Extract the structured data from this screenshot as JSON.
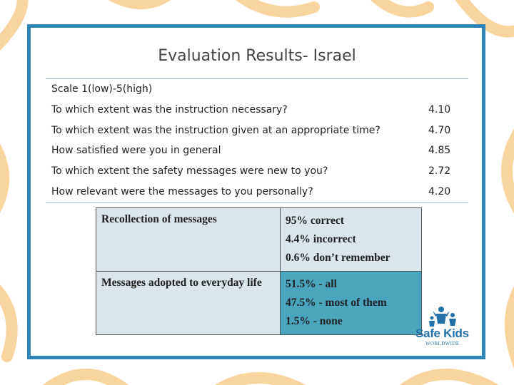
{
  "title": "Evaluation Results- Israel",
  "scale": "Scale 1(low)-5(high)",
  "questions": [
    {
      "q": "To which extent was the instruction necessary?",
      "v": "4.10"
    },
    {
      "q": "To which extent was the instruction given at an appropriate time?",
      "v": "4.70"
    },
    {
      "q": "How satisfied were you in general",
      "v": "4.85"
    },
    {
      "q": "To which extent the safety messages were new to you?",
      "v": "2.72"
    },
    {
      "q": "How relevant were the messages to you personally?",
      "v": "4.20"
    }
  ],
  "results": [
    {
      "label": "Recollection of messages",
      "lines": [
        "95% correct",
        "4.4% incorrect",
        "0.6% don’t remember"
      ]
    },
    {
      "label": "Messages adopted to everyday life",
      "lines": [
        "51.5% - all",
        "47.5% - most of them",
        "1.5% - none"
      ]
    }
  ],
  "logo": {
    "name": "Safe Kids",
    "sub": "WORLDWIDE",
    "color": "#2371a8"
  },
  "colors": {
    "frame": "#2e84b4",
    "row1": "#dbe5ec",
    "row2": "#4aa6bd",
    "bg_shapes": "#f6c98a"
  }
}
